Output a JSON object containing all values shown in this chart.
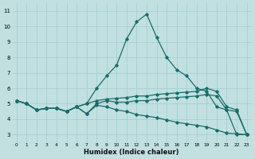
{
  "xlabel": "Humidex (Indice chaleur)",
  "bg_color": "#c2e0e0",
  "line_color": "#1a6b6b",
  "grid_color": "#9ecece",
  "xlim": [
    -0.5,
    23.5
  ],
  "ylim": [
    2.5,
    11.5
  ],
  "xticks": [
    0,
    1,
    2,
    3,
    4,
    5,
    6,
    7,
    8,
    9,
    10,
    11,
    12,
    13,
    14,
    15,
    16,
    17,
    18,
    19,
    20,
    21,
    22,
    23
  ],
  "yticks": [
    3,
    4,
    5,
    6,
    7,
    8,
    9,
    10,
    11
  ],
  "line_peak_x": [
    0,
    1,
    2,
    3,
    4,
    5,
    6,
    7,
    8,
    9,
    10,
    11,
    12,
    13,
    14,
    15,
    16,
    17,
    18,
    19,
    20,
    21,
    22,
    23
  ],
  "line_peak_y": [
    5.2,
    5.0,
    4.6,
    4.7,
    4.7,
    4.5,
    4.8,
    5.0,
    6.0,
    6.8,
    7.5,
    9.2,
    10.3,
    10.8,
    9.3,
    8.0,
    7.2,
    6.8,
    6.0,
    5.8,
    4.8,
    4.6,
    3.0,
    3.0
  ],
  "line_rise_x": [
    0,
    1,
    2,
    3,
    4,
    5,
    6,
    7,
    8,
    9,
    10,
    11,
    12,
    13,
    14,
    15,
    16,
    17,
    18,
    19,
    20,
    21,
    22,
    23
  ],
  "line_rise_y": [
    5.2,
    5.0,
    4.6,
    4.7,
    4.7,
    4.5,
    4.8,
    5.0,
    5.2,
    5.3,
    5.35,
    5.4,
    5.5,
    5.5,
    5.6,
    5.65,
    5.7,
    5.75,
    5.8,
    6.0,
    5.8,
    4.8,
    4.6,
    3.0
  ],
  "line_flat_x": [
    0,
    1,
    2,
    3,
    4,
    5,
    6,
    7,
    8,
    9,
    10,
    11,
    12,
    13,
    14,
    15,
    16,
    17,
    18,
    19,
    20,
    21,
    22,
    23
  ],
  "line_flat_y": [
    5.2,
    5.0,
    4.6,
    4.7,
    4.7,
    4.5,
    4.8,
    4.35,
    5.0,
    5.2,
    5.1,
    5.1,
    5.2,
    5.2,
    5.3,
    5.35,
    5.4,
    5.45,
    5.5,
    5.6,
    5.5,
    4.6,
    4.5,
    3.0
  ],
  "line_fall_x": [
    0,
    1,
    2,
    3,
    4,
    5,
    6,
    7,
    8,
    9,
    10,
    11,
    12,
    13,
    14,
    15,
    16,
    17,
    18,
    19,
    20,
    21,
    22,
    23
  ],
  "line_fall_y": [
    5.2,
    5.0,
    4.6,
    4.7,
    4.7,
    4.5,
    4.8,
    4.35,
    4.9,
    4.8,
    4.6,
    4.5,
    4.3,
    4.2,
    4.1,
    3.95,
    3.8,
    3.7,
    3.6,
    3.5,
    3.3,
    3.1,
    3.05,
    3.0
  ]
}
